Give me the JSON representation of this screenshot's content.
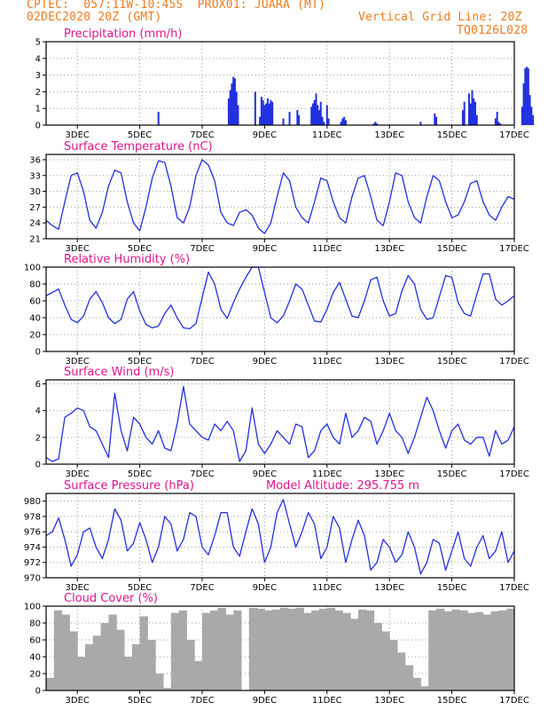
{
  "header": {
    "line1": "CPTEC:  057:11W-10:45S  PROX01: JUARA (MT)",
    "line2_left": "02DEC2020 20Z (GMT)",
    "line2_right": "Vertical Grid Line: 20Z",
    "line3_right": "TQ0126L028"
  },
  "colors": {
    "header": "#ee7a1e",
    "title": "#e0148c",
    "series": "#2030e0",
    "cloud": "#a9a9a9"
  },
  "x_ticks": [
    "3DEC",
    "5DEC",
    "7DEC",
    "9DEC",
    "11DEC",
    "13DEC",
    "15DEC",
    "17DEC"
  ],
  "chart_data": [
    {
      "type": "bar",
      "title": "Precipitation (mm/h)",
      "y_ticks": [
        "0",
        "1",
        "2",
        "3",
        "4",
        "5"
      ],
      "ylim": [
        0,
        5
      ],
      "xlim": [
        0,
        15
      ],
      "grid": true,
      "x": [
        3.6,
        5.85,
        5.9,
        5.95,
        6.0,
        6.05,
        6.1,
        6.15,
        6.7,
        6.85,
        6.9,
        6.95,
        7.0,
        7.05,
        7.1,
        7.15,
        7.2,
        7.25,
        7.6,
        7.8,
        8.05,
        8.1,
        8.5,
        8.55,
        8.6,
        8.65,
        8.7,
        8.75,
        8.8,
        8.85,
        8.9,
        9.0,
        9.05,
        9.45,
        9.5,
        9.55,
        9.6,
        10.5,
        10.55,
        10.6,
        12.0,
        12.45,
        12.5,
        13.35,
        13.4,
        13.55,
        13.6,
        13.65,
        13.7,
        13.75,
        13.8,
        14.4,
        14.45,
        14.5,
        14.55,
        15.25,
        15.3,
        15.35,
        15.4,
        15.45,
        15.5,
        15.55,
        15.6
      ],
      "values": [
        0.8,
        1.6,
        2.1,
        2.5,
        2.9,
        2.8,
        2.0,
        1.2,
        2.0,
        0.5,
        1.7,
        1.5,
        1.2,
        1.3,
        1.6,
        1.3,
        1.5,
        1.4,
        0.4,
        0.8,
        0.9,
        0.6,
        1.1,
        1.3,
        1.5,
        1.9,
        1.2,
        0.9,
        1.4,
        0.5,
        0.2,
        1.2,
        0.4,
        0.2,
        0.4,
        0.5,
        0.3,
        0.1,
        0.2,
        0.1,
        0.2,
        0.7,
        0.5,
        0.9,
        1.4,
        1.9,
        1.3,
        2.1,
        1.6,
        1.4,
        0.6,
        0.4,
        0.8,
        0.2,
        0.1,
        1.1,
        2.5,
        3.4,
        3.5,
        3.4,
        1.8,
        1.1,
        0.6
      ]
    },
    {
      "type": "line",
      "title": "Surface Temperature (nC)",
      "y_ticks": [
        "21",
        "24",
        "27",
        "30",
        "33",
        "36"
      ],
      "ylim": [
        21,
        37
      ],
      "xlim": [
        0,
        15
      ],
      "grid": true,
      "x": [
        0,
        0.2,
        0.4,
        0.6,
        0.8,
        1.0,
        1.2,
        1.4,
        1.6,
        1.8,
        2.0,
        2.2,
        2.4,
        2.6,
        2.8,
        3.0,
        3.2,
        3.4,
        3.6,
        3.8,
        4.0,
        4.2,
        4.4,
        4.6,
        4.8,
        5.0,
        5.2,
        5.4,
        5.6,
        5.8,
        6.0,
        6.2,
        6.4,
        6.6,
        6.8,
        7.0,
        7.2,
        7.4,
        7.6,
        7.8,
        8.0,
        8.2,
        8.4,
        8.6,
        8.8,
        9.0,
        9.2,
        9.4,
        9.6,
        9.8,
        10.0,
        10.2,
        10.4,
        10.6,
        10.8,
        11.0,
        11.2,
        11.4,
        11.6,
        11.8,
        12.0,
        12.2,
        12.4,
        12.6,
        12.8,
        13.0,
        13.2,
        13.4,
        13.6,
        13.8,
        14.0,
        14.2,
        14.4,
        14.6,
        14.8,
        15.0
      ],
      "values": [
        24.5,
        23.5,
        22.8,
        28,
        33,
        33.5,
        30,
        24.5,
        23,
        26,
        31,
        34,
        33.5,
        28,
        24,
        22.5,
        27,
        32.5,
        35.8,
        35.5,
        31,
        25,
        24,
        27,
        33,
        36,
        35,
        32,
        26,
        24,
        23.5,
        26,
        26.5,
        25.5,
        23,
        22,
        24,
        29,
        33.5,
        32,
        27,
        25,
        24,
        28,
        32.5,
        32,
        28,
        25,
        24,
        29,
        32.5,
        33,
        29,
        24.5,
        23.5,
        28,
        33.5,
        33,
        28,
        25,
        24,
        29,
        33,
        32,
        28,
        25,
        25.5,
        28,
        31.5,
        32,
        28,
        25.5,
        24.5,
        27,
        29,
        28.5
      ]
    },
    {
      "type": "line",
      "title": "Relative Humidity (%)",
      "y_ticks": [
        "0",
        "20",
        "40",
        "60",
        "80",
        "100"
      ],
      "ylim": [
        0,
        100
      ],
      "xlim": [
        0,
        15
      ],
      "grid": true,
      "x": [
        0,
        0.2,
        0.4,
        0.6,
        0.8,
        1.0,
        1.2,
        1.4,
        1.6,
        1.8,
        2.0,
        2.2,
        2.4,
        2.6,
        2.8,
        3.0,
        3.2,
        3.4,
        3.6,
        3.8,
        4.0,
        4.2,
        4.4,
        4.6,
        4.8,
        5.0,
        5.2,
        5.4,
        5.6,
        5.8,
        6.0,
        6.2,
        6.4,
        6.6,
        6.8,
        7.0,
        7.2,
        7.4,
        7.6,
        7.8,
        8.0,
        8.2,
        8.4,
        8.6,
        8.8,
        9.0,
        9.2,
        9.4,
        9.6,
        9.8,
        10.0,
        10.2,
        10.4,
        10.6,
        10.8,
        11.0,
        11.2,
        11.4,
        11.6,
        11.8,
        12.0,
        12.2,
        12.4,
        12.6,
        12.8,
        13.0,
        13.2,
        13.4,
        13.6,
        13.8,
        14.0,
        14.2,
        14.4,
        14.6,
        14.8,
        15.0
      ],
      "values": [
        66,
        70,
        74,
        55,
        38,
        34,
        42,
        62,
        71,
        58,
        40,
        33,
        38,
        62,
        71,
        48,
        32,
        28,
        30,
        45,
        55,
        40,
        28,
        27,
        33,
        64,
        94,
        80,
        50,
        39,
        58,
        74,
        88,
        100,
        100,
        70,
        40,
        34,
        42,
        60,
        80,
        74,
        55,
        36,
        35,
        50,
        70,
        82,
        62,
        42,
        40,
        60,
        85,
        88,
        60,
        42,
        45,
        72,
        90,
        80,
        50,
        38,
        40,
        65,
        90,
        88,
        58,
        45,
        42,
        68,
        92,
        92,
        62,
        55,
        60,
        66
      ]
    },
    {
      "type": "line",
      "title": "Surface Wind (m/s)",
      "y_ticks": [
        "0",
        "2",
        "4",
        "6"
      ],
      "ylim": [
        0,
        6.3
      ],
      "xlim": [
        0,
        15
      ],
      "grid": true,
      "x": [
        0,
        0.2,
        0.4,
        0.6,
        0.8,
        1.0,
        1.2,
        1.4,
        1.6,
        1.8,
        2.0,
        2.2,
        2.4,
        2.6,
        2.8,
        3.0,
        3.2,
        3.4,
        3.6,
        3.8,
        4.0,
        4.2,
        4.4,
        4.6,
        4.8,
        5.0,
        5.2,
        5.4,
        5.6,
        5.8,
        6.0,
        6.2,
        6.4,
        6.6,
        6.8,
        7.0,
        7.2,
        7.4,
        7.6,
        7.8,
        8.0,
        8.2,
        8.4,
        8.6,
        8.8,
        9.0,
        9.2,
        9.4,
        9.6,
        9.8,
        10.0,
        10.2,
        10.4,
        10.6,
        10.8,
        11.0,
        11.2,
        11.4,
        11.6,
        11.8,
        12.0,
        12.2,
        12.4,
        12.6,
        12.8,
        13.0,
        13.2,
        13.4,
        13.6,
        13.8,
        14.0,
        14.2,
        14.4,
        14.6,
        14.8,
        15.0
      ],
      "values": [
        0.5,
        0.2,
        0.4,
        3.5,
        3.8,
        4.2,
        4.0,
        2.8,
        2.5,
        1.5,
        0.5,
        5.3,
        2.5,
        1.0,
        3.5,
        3.0,
        2.0,
        1.5,
        2.5,
        1.2,
        1.0,
        3.0,
        5.8,
        3.0,
        2.5,
        2.0,
        1.8,
        3.0,
        2.5,
        3.2,
        2.5,
        0.2,
        1.0,
        4.2,
        1.5,
        0.8,
        1.5,
        2.5,
        2.0,
        1.5,
        3.0,
        2.8,
        0.5,
        1.0,
        2.5,
        3.0,
        2.0,
        1.5,
        3.8,
        2.0,
        2.5,
        3.5,
        3.2,
        1.5,
        2.5,
        3.8,
        2.5,
        2.0,
        0.8,
        2.0,
        3.5,
        5.0,
        4.0,
        2.5,
        1.2,
        2.5,
        3.0,
        1.8,
        1.5,
        2.0,
        2.0,
        0.6,
        2.5,
        1.5,
        1.8,
        2.8
      ]
    },
    {
      "type": "line",
      "title": "Surface Pressure (hPa)",
      "subtitle": "Model Altitude: 295.755 m",
      "y_ticks": [
        "970",
        "972",
        "974",
        "976",
        "978",
        "980"
      ],
      "ylim": [
        970,
        981
      ],
      "xlim": [
        0,
        15
      ],
      "grid": true,
      "x": [
        0,
        0.2,
        0.4,
        0.6,
        0.8,
        1.0,
        1.2,
        1.4,
        1.6,
        1.8,
        2.0,
        2.2,
        2.4,
        2.6,
        2.8,
        3.0,
        3.2,
        3.4,
        3.6,
        3.8,
        4.0,
        4.2,
        4.4,
        4.6,
        4.8,
        5.0,
        5.2,
        5.4,
        5.6,
        5.8,
        6.0,
        6.2,
        6.4,
        6.6,
        6.8,
        7.0,
        7.2,
        7.4,
        7.6,
        7.8,
        8.0,
        8.2,
        8.4,
        8.6,
        8.8,
        9.0,
        9.2,
        9.4,
        9.6,
        9.8,
        10.0,
        10.2,
        10.4,
        10.6,
        10.8,
        11.0,
        11.2,
        11.4,
        11.6,
        11.8,
        12.0,
        12.2,
        12.4,
        12.6,
        12.8,
        13.0,
        13.2,
        13.4,
        13.6,
        13.8,
        14.0,
        14.2,
        14.4,
        14.6,
        14.8,
        15.0
      ],
      "values": [
        975.5,
        976,
        977.8,
        975,
        971.5,
        973,
        976,
        976.5,
        974,
        972.5,
        975,
        979,
        977.5,
        973.5,
        974.5,
        977.2,
        975,
        972,
        974,
        978,
        977,
        973.5,
        975,
        978.5,
        978,
        974,
        973,
        975.5,
        978.5,
        978.5,
        974,
        972.8,
        976,
        979,
        977,
        972,
        974,
        978.5,
        980.2,
        977,
        974,
        976,
        978.5,
        977,
        972.5,
        974,
        978,
        976.5,
        972,
        975,
        977.5,
        975.5,
        971,
        972,
        975,
        974,
        972,
        973,
        976,
        974,
        970.5,
        972,
        975,
        974.5,
        971,
        973.5,
        976,
        972.5,
        971.5,
        974,
        975.5,
        972.5,
        973.5,
        976,
        972,
        973.5
      ]
    },
    {
      "type": "bar",
      "title": "Cloud Cover (%)",
      "y_ticks": [
        "0",
        "20",
        "40",
        "60",
        "80",
        "100"
      ],
      "ylim": [
        0,
        100
      ],
      "xlim": [
        0,
        15
      ],
      "grid": true,
      "x": [
        0,
        0.25,
        0.5,
        0.75,
        1.0,
        1.25,
        1.5,
        1.75,
        2.0,
        2.25,
        2.5,
        2.75,
        3.0,
        3.25,
        3.5,
        3.75,
        4.0,
        4.25,
        4.5,
        4.75,
        5.0,
        5.25,
        5.5,
        5.75,
        6.0,
        6.25,
        6.5,
        6.75,
        7.0,
        7.25,
        7.5,
        7.75,
        8.0,
        8.25,
        8.5,
        8.75,
        9.0,
        9.25,
        9.5,
        9.75,
        10.0,
        10.25,
        10.5,
        10.75,
        11.0,
        11.25,
        11.5,
        11.75,
        12.0,
        12.25,
        12.5,
        12.75,
        13.0,
        13.25,
        13.5,
        13.75,
        14.0,
        14.25,
        14.5,
        14.75
      ],
      "values": [
        15,
        95,
        90,
        70,
        40,
        55,
        65,
        80,
        90,
        72,
        40,
        55,
        88,
        60,
        20,
        3,
        92,
        95,
        60,
        35,
        92,
        95,
        98,
        90,
        95,
        0,
        98,
        97,
        95,
        96,
        98,
        97,
        98,
        92,
        95,
        97,
        98,
        95,
        92,
        85,
        96,
        95,
        80,
        70,
        60,
        45,
        30,
        15,
        5,
        95,
        97,
        94,
        96,
        95,
        92,
        93,
        90,
        94,
        95,
        97
      ]
    }
  ]
}
